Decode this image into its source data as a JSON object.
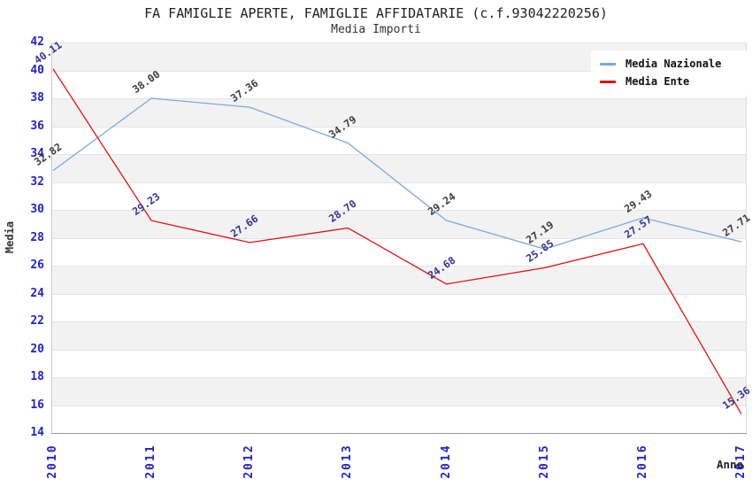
{
  "chart": {
    "title": "FA FAMIGLIE APERTE, FAMIGLIE AFFIDATARIE (c.f.93042220256)",
    "subtitle": "Media Importi"
  },
  "chart_data": {
    "type": "line",
    "categories": [
      "2010",
      "2011",
      "2012",
      "2013",
      "2014",
      "2015",
      "2016",
      "2017"
    ],
    "series": [
      {
        "name": "Media Nazionale",
        "color": "#79aade",
        "label_color": "#3c3c3c",
        "values": [
          32.82,
          38.0,
          37.36,
          34.79,
          29.24,
          27.19,
          29.43,
          27.71
        ]
      },
      {
        "name": "Media Ente",
        "color": "#e31212",
        "label_color": "#333399",
        "values": [
          40.11,
          29.23,
          27.66,
          28.7,
          24.68,
          25.85,
          27.57,
          15.36
        ]
      }
    ],
    "xlabel": "Anno",
    "ylabel": "Media",
    "ylim": [
      14,
      42
    ],
    "ytick_step": 2,
    "tick_color": "#2222cc",
    "legend_position": "top-right",
    "grid": "horizontal-bands",
    "data_label_decimals": 2
  }
}
